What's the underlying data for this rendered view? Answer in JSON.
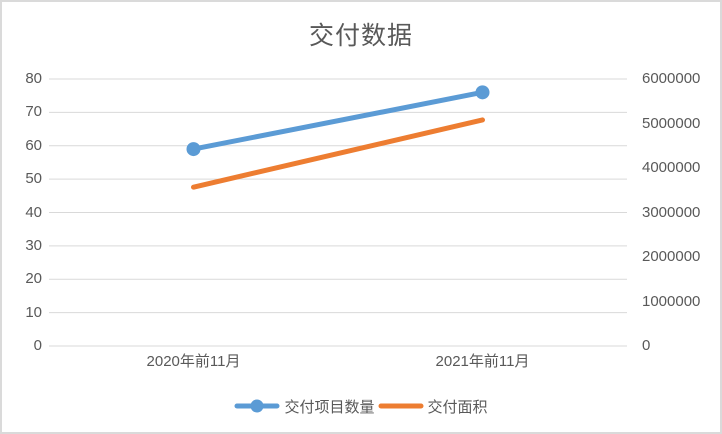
{
  "chart_data": {
    "type": "line",
    "title": "交付数据",
    "categories": [
      "2020年前11月",
      "2021年前11月"
    ],
    "series": [
      {
        "name": "交付项目数量",
        "axis": "left",
        "color": "#5B9BD5",
        "marker": "circle",
        "values": [
          59,
          76
        ]
      },
      {
        "name": "交付面积",
        "axis": "right",
        "color": "#ED7D31",
        "marker": "none",
        "values": [
          3570000,
          5080000
        ]
      }
    ],
    "left_axis": {
      "min": 0,
      "max": 80,
      "step": 10,
      "tick_labels": [
        "0",
        "10",
        "20",
        "30",
        "40",
        "50",
        "60",
        "70",
        "80"
      ]
    },
    "right_axis": {
      "min": 0,
      "max": 6000000,
      "step": 1000000,
      "tick_labels": [
        "0",
        "1000000",
        "2000000",
        "3000000",
        "4000000",
        "5000000",
        "6000000"
      ]
    },
    "grid": true,
    "legend_position": "bottom",
    "colors": {
      "grid": "#D9D9D9",
      "text": "#595959",
      "border": "#DADADA",
      "background": "#FFFFFF",
      "series_blue": "#5B9BD5",
      "series_orange": "#ED7D31"
    }
  }
}
